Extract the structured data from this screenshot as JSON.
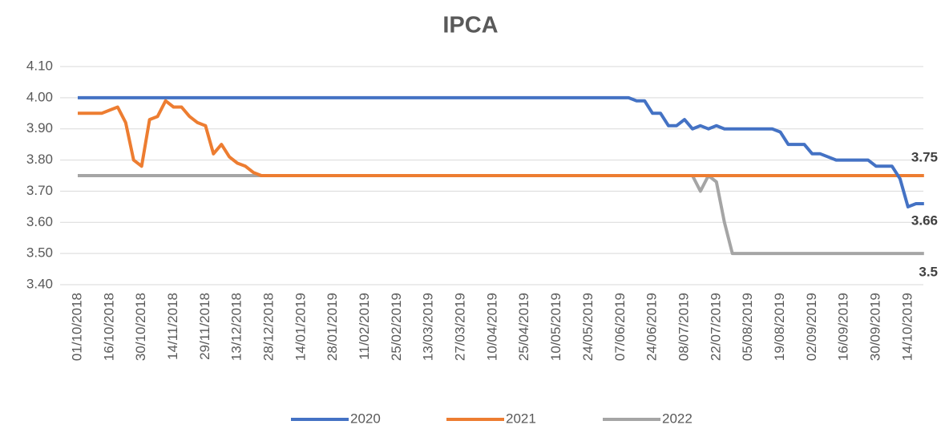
{
  "chart_data": {
    "type": "line",
    "title": "IPCA",
    "categories": [
      "01/10/2018",
      null,
      null,
      null,
      "16/10/2018",
      null,
      null,
      null,
      "30/10/2018",
      null,
      null,
      null,
      "14/11/2018",
      null,
      null,
      null,
      "29/11/2018",
      null,
      null,
      null,
      "13/12/2018",
      null,
      null,
      null,
      "28/12/2018",
      null,
      null,
      null,
      "14/01/2019",
      null,
      null,
      null,
      "28/01/2019",
      null,
      null,
      null,
      "11/02/2019",
      null,
      null,
      null,
      "25/02/2019",
      null,
      null,
      null,
      "13/03/2019",
      null,
      null,
      null,
      "27/03/2019",
      null,
      null,
      null,
      "10/04/2019",
      null,
      null,
      null,
      "25/04/2019",
      null,
      null,
      null,
      "10/05/2019",
      null,
      null,
      null,
      "24/05/2019",
      null,
      null,
      null,
      "07/06/2019",
      null,
      null,
      null,
      "24/06/2019",
      null,
      null,
      null,
      "08/07/2019",
      null,
      null,
      null,
      "22/07/2019",
      null,
      null,
      null,
      "05/08/2019",
      null,
      null,
      null,
      "19/08/2019",
      null,
      null,
      null,
      "02/09/2019",
      null,
      null,
      null,
      "16/09/2019",
      null,
      null,
      null,
      "30/09/2019",
      null,
      null,
      null,
      "14/10/2019",
      null,
      null
    ],
    "series": [
      {
        "name": "2020",
        "color": "#4472c4",
        "values": [
          4.0,
          4.0,
          4.0,
          4.0,
          4.0,
          4.0,
          4.0,
          4.0,
          4.0,
          4.0,
          4.0,
          4.0,
          4.0,
          4.0,
          4.0,
          4.0,
          4.0,
          4.0,
          4.0,
          4.0,
          4.0,
          4.0,
          4.0,
          4.0,
          4.0,
          4.0,
          4.0,
          4.0,
          4.0,
          4.0,
          4.0,
          4.0,
          4.0,
          4.0,
          4.0,
          4.0,
          4.0,
          4.0,
          4.0,
          4.0,
          4.0,
          4.0,
          4.0,
          4.0,
          4.0,
          4.0,
          4.0,
          4.0,
          4.0,
          4.0,
          4.0,
          4.0,
          4.0,
          4.0,
          4.0,
          4.0,
          4.0,
          4.0,
          4.0,
          4.0,
          4.0,
          4.0,
          4.0,
          4.0,
          4.0,
          4.0,
          4.0,
          4.0,
          4.0,
          4.0,
          3.99,
          3.99,
          3.95,
          3.95,
          3.91,
          3.91,
          3.93,
          3.9,
          3.91,
          3.9,
          3.91,
          3.9,
          3.9,
          3.9,
          3.9,
          3.9,
          3.9,
          3.9,
          3.89,
          3.85,
          3.85,
          3.85,
          3.82,
          3.82,
          3.81,
          3.8,
          3.8,
          3.8,
          3.8,
          3.8,
          3.78,
          3.78,
          3.78,
          3.74,
          3.65,
          3.66,
          3.66
        ]
      },
      {
        "name": "2021",
        "color": "#ed7d31",
        "values": [
          3.95,
          3.95,
          3.95,
          3.95,
          3.96,
          3.97,
          3.92,
          3.8,
          3.78,
          3.93,
          3.94,
          3.99,
          3.97,
          3.97,
          3.94,
          3.92,
          3.91,
          3.82,
          3.85,
          3.81,
          3.79,
          3.78,
          3.76,
          3.75,
          3.75,
          3.75,
          3.75,
          3.75,
          3.75,
          3.75,
          3.75,
          3.75,
          3.75,
          3.75,
          3.75,
          3.75,
          3.75,
          3.75,
          3.75,
          3.75,
          3.75,
          3.75,
          3.75,
          3.75,
          3.75,
          3.75,
          3.75,
          3.75,
          3.75,
          3.75,
          3.75,
          3.75,
          3.75,
          3.75,
          3.75,
          3.75,
          3.75,
          3.75,
          3.75,
          3.75,
          3.75,
          3.75,
          3.75,
          3.75,
          3.75,
          3.75,
          3.75,
          3.75,
          3.75,
          3.75,
          3.75,
          3.75,
          3.75,
          3.75,
          3.75,
          3.75,
          3.75,
          3.75,
          3.75,
          3.75,
          3.75,
          3.75,
          3.75,
          3.75,
          3.75,
          3.75,
          3.75,
          3.75,
          3.75,
          3.75,
          3.75,
          3.75,
          3.75,
          3.75,
          3.75,
          3.75,
          3.75,
          3.75,
          3.75,
          3.75,
          3.75,
          3.75,
          3.75,
          3.75,
          3.75,
          3.75,
          3.75
        ]
      },
      {
        "name": "2022",
        "color": "#a5a5a5",
        "values": [
          3.75,
          3.75,
          3.75,
          3.75,
          3.75,
          3.75,
          3.75,
          3.75,
          3.75,
          3.75,
          3.75,
          3.75,
          3.75,
          3.75,
          3.75,
          3.75,
          3.75,
          3.75,
          3.75,
          3.75,
          3.75,
          3.75,
          3.75,
          3.75,
          3.75,
          3.75,
          3.75,
          3.75,
          3.75,
          3.75,
          3.75,
          3.75,
          3.75,
          3.75,
          3.75,
          3.75,
          3.75,
          3.75,
          3.75,
          3.75,
          3.75,
          3.75,
          3.75,
          3.75,
          3.75,
          3.75,
          3.75,
          3.75,
          3.75,
          3.75,
          3.75,
          3.75,
          3.75,
          3.75,
          3.75,
          3.75,
          3.75,
          3.75,
          3.75,
          3.75,
          3.75,
          3.75,
          3.75,
          3.75,
          3.75,
          3.75,
          3.75,
          3.75,
          3.75,
          3.75,
          3.75,
          3.75,
          3.75,
          3.75,
          3.75,
          3.75,
          3.75,
          3.75,
          3.7,
          3.75,
          3.73,
          3.6,
          3.5,
          3.5,
          3.5,
          3.5,
          3.5,
          3.5,
          3.5,
          3.5,
          3.5,
          3.5,
          3.5,
          3.5,
          3.5,
          3.5,
          3.5,
          3.5,
          3.5,
          3.5,
          3.5,
          3.5,
          3.5,
          3.5,
          3.5,
          3.5,
          3.5
        ]
      }
    ],
    "ylim": [
      3.4,
      4.1
    ],
    "yticks": [
      {
        "value": 3.4,
        "label": "3.40"
      },
      {
        "value": 3.5,
        "label": "3.50"
      },
      {
        "value": 3.6,
        "label": "3.60"
      },
      {
        "value": 3.7,
        "label": "3.70"
      },
      {
        "value": 3.8,
        "label": "3.80"
      },
      {
        "value": 3.9,
        "label": "3.90"
      },
      {
        "value": 4.0,
        "label": "4.00"
      },
      {
        "value": 4.1,
        "label": "4.10"
      }
    ],
    "grid": true,
    "legend": "bottom"
  }
}
